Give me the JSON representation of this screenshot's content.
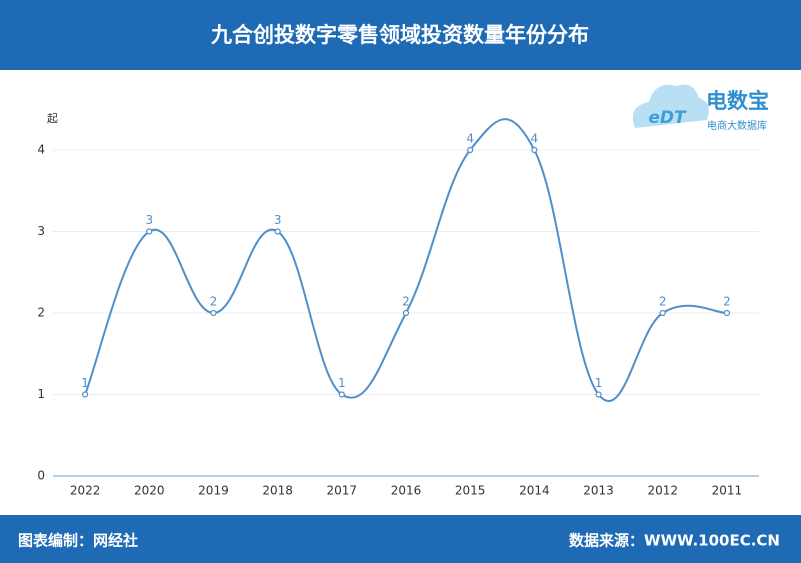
{
  "chart_data": {
    "type": "line",
    "title": "九合创投数字零售领域投资数量年份分布",
    "y_unit": "起",
    "categories": [
      "2022",
      "2020",
      "2019",
      "2018",
      "2017",
      "2016",
      "2015",
      "2014",
      "2013",
      "2012",
      "2011"
    ],
    "values": [
      1,
      3,
      2,
      3,
      1,
      2,
      4,
      4,
      1,
      2,
      2
    ],
    "color": "#4f8fca",
    "smooth": true,
    "ylim": [
      0,
      4
    ],
    "yticks": [
      0,
      1,
      2,
      3,
      4
    ],
    "grid": true
  },
  "logo": {
    "name": "电数宝",
    "mark": "eDT",
    "subtitle": "电商大数据库"
  },
  "footer": {
    "left": "图表编制：网经社",
    "right": "数据来源：WWW.100EC.CN"
  }
}
